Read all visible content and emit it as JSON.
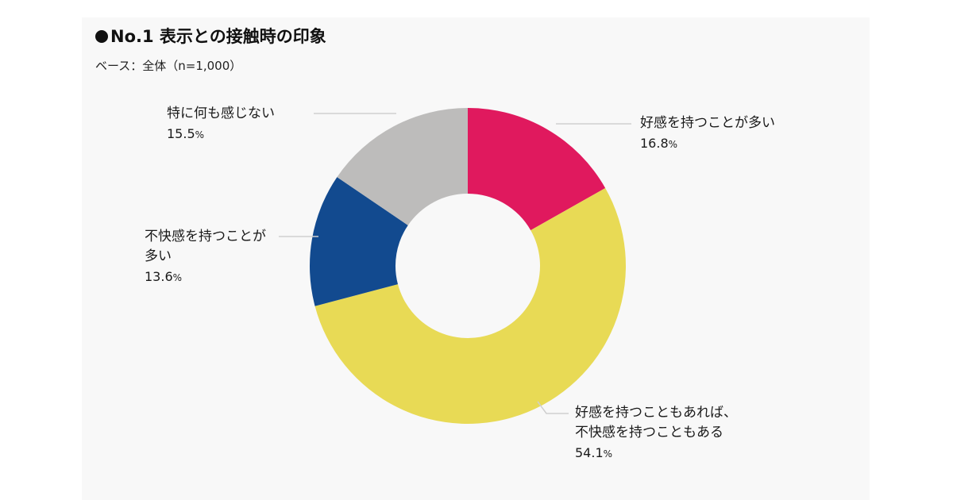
{
  "title": "No.1 表示との接触時の印象",
  "subtitle": "ベース：全体（n=1,000）",
  "chart_data": {
    "type": "pie",
    "donut": true,
    "start": "top",
    "direction": "clockwise",
    "unit": "%",
    "labels_placement": "outside-with-leader-lines",
    "slices": [
      {
        "label": "好感を持つことが多い",
        "label_lines": [
          "好感を持つことが多い"
        ],
        "value": 16.8,
        "value_text": "16.8",
        "color": "#e0195e"
      },
      {
        "label": "好感を持つこともあれば、不快感を持つこともある",
        "label_lines": [
          "好感を持つこともあれば、",
          "不快感を持つこともある"
        ],
        "value": 54.1,
        "value_text": "54.1",
        "color": "#e8da55"
      },
      {
        "label": "不快感を持つことが多い",
        "label_lines": [
          "不快感を持つことが",
          "多い"
        ],
        "value": 13.6,
        "value_text": "13.6",
        "color": "#124a8f"
      },
      {
        "label": "特に何も感じない",
        "label_lines": [
          "特に何も感じない"
        ],
        "value": 15.5,
        "value_text": "15.5",
        "color": "#bdbcbb"
      }
    ]
  }
}
